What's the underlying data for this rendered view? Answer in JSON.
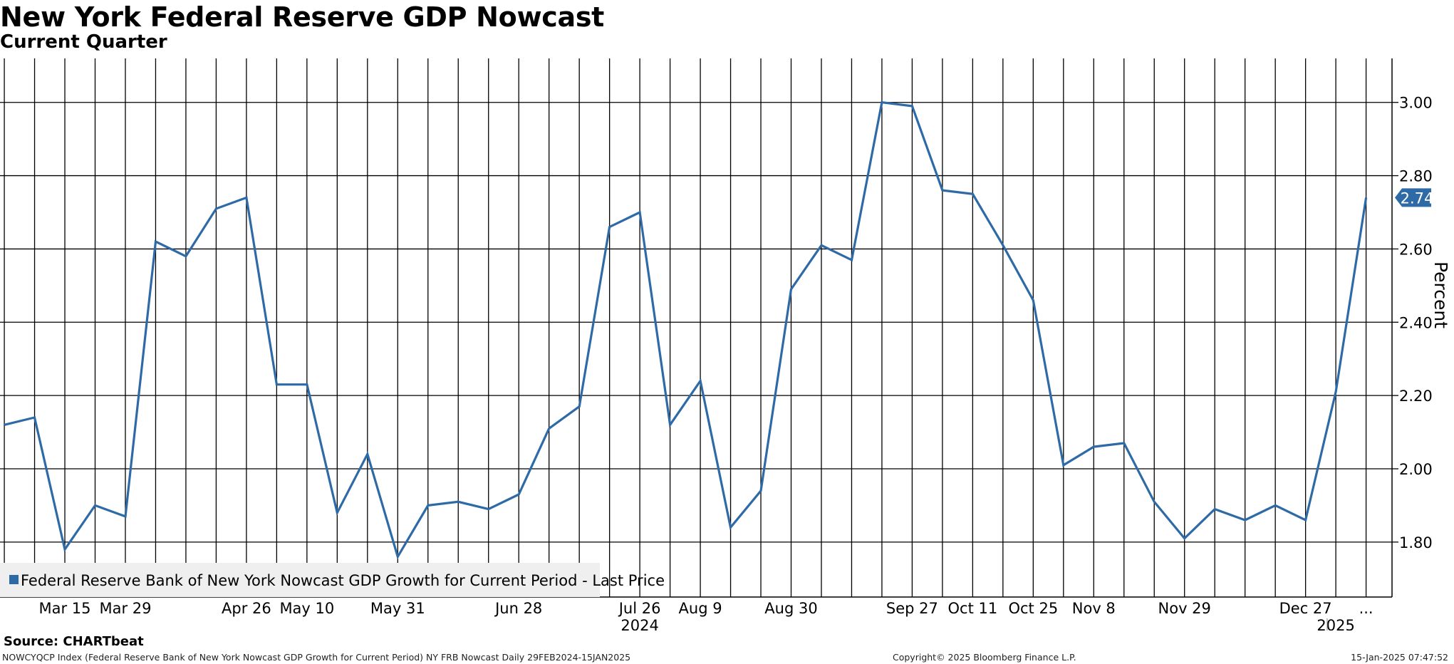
{
  "chart_data": {
    "type": "line",
    "title": "New York Federal Reserve GDP Nowcast",
    "subtitle": "Current Quarter",
    "ylabel": "Percent",
    "ylim": [
      1.65,
      3.12
    ],
    "yticks": [
      1.8,
      2.0,
      2.2,
      2.4,
      2.6,
      2.8,
      3.0
    ],
    "ytick_labels": [
      "1.80",
      "2.00",
      "2.20",
      "2.40",
      "2.60",
      "2.80",
      "3.00"
    ],
    "grid": true,
    "legend_position": "bottom-left",
    "x_dates": [
      "2024-03-01",
      "2024-03-08",
      "2024-03-15",
      "2024-03-22",
      "2024-03-29",
      "2024-04-05",
      "2024-04-12",
      "2024-04-19",
      "2024-04-26",
      "2024-05-03",
      "2024-05-10",
      "2024-05-17",
      "2024-05-24",
      "2024-05-31",
      "2024-06-07",
      "2024-06-14",
      "2024-06-21",
      "2024-06-28",
      "2024-07-05",
      "2024-07-12",
      "2024-07-19",
      "2024-07-26",
      "2024-08-02",
      "2024-08-09",
      "2024-08-16",
      "2024-08-23",
      "2024-08-30",
      "2024-09-06",
      "2024-09-13",
      "2024-09-20",
      "2024-09-27",
      "2024-10-04",
      "2024-10-11",
      "2024-10-18",
      "2024-10-25",
      "2024-11-01",
      "2024-11-08",
      "2024-11-15",
      "2024-11-22",
      "2024-11-29",
      "2024-12-06",
      "2024-12-13",
      "2024-12-20",
      "2024-12-27",
      "2025-01-03",
      "2025-01-10"
    ],
    "x_range": [
      "2024-02-29",
      "2025-01-15"
    ],
    "series": [
      {
        "name": "Federal Reserve Bank of New York Nowcast GDP Growth for Current Period - Last Price",
        "color": "#2e6aa6",
        "values": [
          2.12,
          2.14,
          1.78,
          1.9,
          1.87,
          2.62,
          2.58,
          2.71,
          2.74,
          2.23,
          2.23,
          1.88,
          2.04,
          1.76,
          1.9,
          1.91,
          1.89,
          1.93,
          2.11,
          2.17,
          2.66,
          2.7,
          2.12,
          2.24,
          1.84,
          1.94,
          2.49,
          2.61,
          2.57,
          3.0,
          2.99,
          2.76,
          2.75,
          2.61,
          2.46,
          2.01,
          2.06,
          2.07,
          1.91,
          1.81,
          1.89,
          1.86,
          1.9,
          1.86,
          2.21,
          2.74
        ]
      }
    ],
    "last_price": 2.74,
    "last_price_label": "2.74",
    "x_ticks": [
      {
        "date": "2024-03-15",
        "label": "Mar 15"
      },
      {
        "date": "2024-03-29",
        "label": "Mar 29"
      },
      {
        "date": "2024-04-26",
        "label": "Apr 26"
      },
      {
        "date": "2024-05-10",
        "label": "May 10"
      },
      {
        "date": "2024-05-31",
        "label": "May 31"
      },
      {
        "date": "2024-06-28",
        "label": "Jun 28"
      },
      {
        "date": "2024-07-26",
        "label": "Jul 26"
      },
      {
        "date": "2024-08-09",
        "label": "Aug 9"
      },
      {
        "date": "2024-08-30",
        "label": "Aug 30"
      },
      {
        "date": "2024-09-27",
        "label": "Sep 27"
      },
      {
        "date": "2024-10-11",
        "label": "Oct 11"
      },
      {
        "date": "2024-10-25",
        "label": "Oct 25"
      },
      {
        "date": "2024-11-08",
        "label": "Nov 8"
      },
      {
        "date": "2024-11-29",
        "label": "Nov 29"
      },
      {
        "date": "2024-12-27",
        "label": "Dec 27"
      },
      {
        "date": "2025-01-10",
        "label": "..."
      }
    ],
    "year_labels": [
      {
        "date": "2024-07-26",
        "label": "2024"
      },
      {
        "date": "2025-01-03",
        "label": "2025"
      }
    ]
  },
  "source": "Source: CHARTbeat",
  "footer": {
    "left": "NOWCYQCP Index (Federal Reserve Bank of New York Nowcast GDP Growth for Current Period) NY FRB Nowcast  Daily 29FEB2024-15JAN2025",
    "center": "Copyright© 2025 Bloomberg Finance L.P.",
    "right": "15-Jan-2025 07:47:52"
  }
}
